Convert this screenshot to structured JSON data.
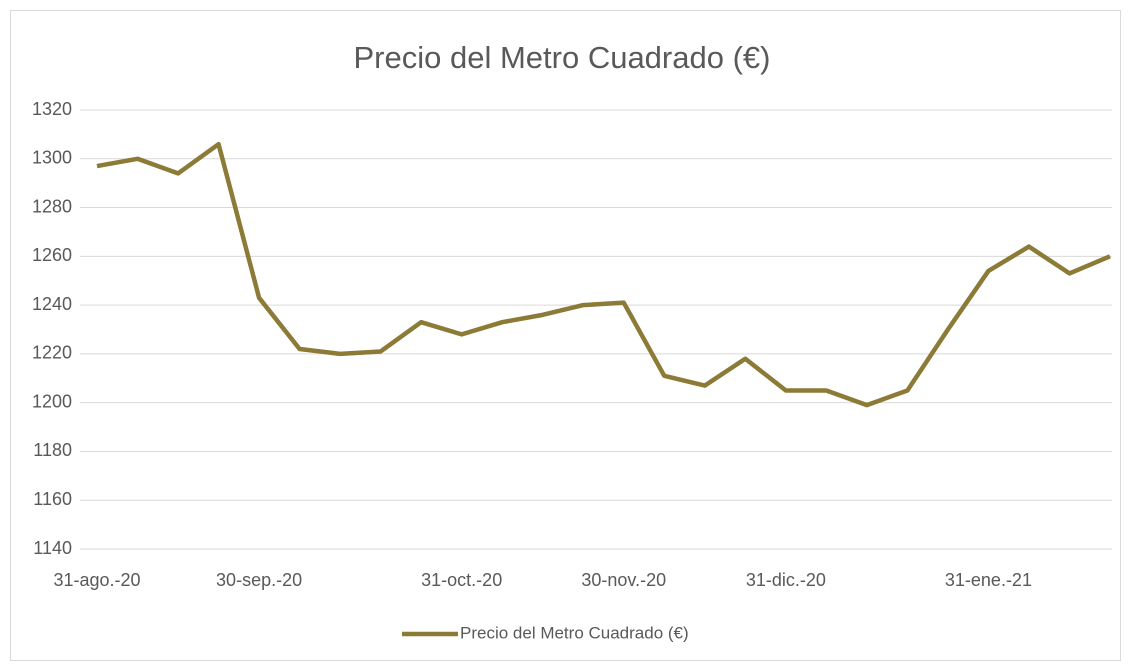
{
  "chart_data": {
    "type": "line",
    "title": "Precio del Metro Cuadrado (€)",
    "categories": [
      "31-ago.-20",
      null,
      null,
      null,
      "30-sep.-20",
      null,
      null,
      null,
      null,
      "31-oct.-20",
      null,
      null,
      null,
      "30-nov.-20",
      null,
      null,
      null,
      "31-dic.-20",
      null,
      null,
      null,
      null,
      "31-ene.-21",
      null,
      null,
      null
    ],
    "series": [
      {
        "name": "Precio del Metro Cuadrado (€)",
        "color": "#8c7a37",
        "values": [
          1297,
          1300,
          1294,
          1306,
          1243,
          1222,
          1220,
          1221,
          1233,
          1228,
          1233,
          1236,
          1240,
          1241,
          1211,
          1207,
          1218,
          1205,
          1205,
          1199,
          1205,
          1230,
          1254,
          1264,
          1253,
          1260
        ]
      }
    ],
    "ylim": [
      1140,
      1320
    ],
    "yticks": [
      1140,
      1160,
      1180,
      1200,
      1220,
      1240,
      1260,
      1280,
      1300,
      1320
    ],
    "grid": true,
    "legend": "bottom"
  }
}
